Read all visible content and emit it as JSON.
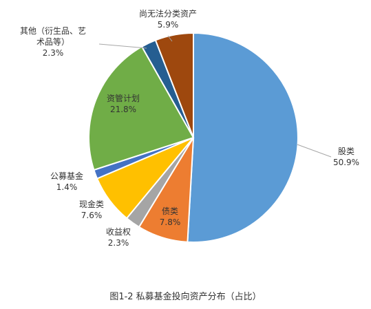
{
  "chart_data": {
    "type": "pie",
    "caption": "图1-2 私募基金投向资产分布（占比）",
    "slices": [
      {
        "name": "股类",
        "value": 50.9,
        "value_label": "50.9%",
        "color": "#5b9bd5"
      },
      {
        "name": "债类",
        "value": 7.8,
        "value_label": "7.8%",
        "color": "#ed7d31"
      },
      {
        "name": "收益权",
        "value": 2.3,
        "value_label": "2.3%",
        "color": "#a5a5a5"
      },
      {
        "name": "现金类",
        "value": 7.6,
        "value_label": "7.6%",
        "color": "#ffc000"
      },
      {
        "name": "公募基金",
        "value": 1.4,
        "value_label": "1.4%",
        "color": "#4472c4"
      },
      {
        "name": "资管计划",
        "value": 21.8,
        "value_label": "21.8%",
        "color": "#70ad47"
      },
      {
        "name": "其他（衍生品、艺术品等）",
        "name_lines": [
          "其他（衍生品、艺",
          "术品等）"
        ],
        "value": 2.3,
        "value_label": "2.3%",
        "color": "#255e91"
      },
      {
        "name": "尚无法分类资产",
        "value": 5.9,
        "value_label": "5.9%",
        "color": "#9e480e"
      }
    ]
  }
}
